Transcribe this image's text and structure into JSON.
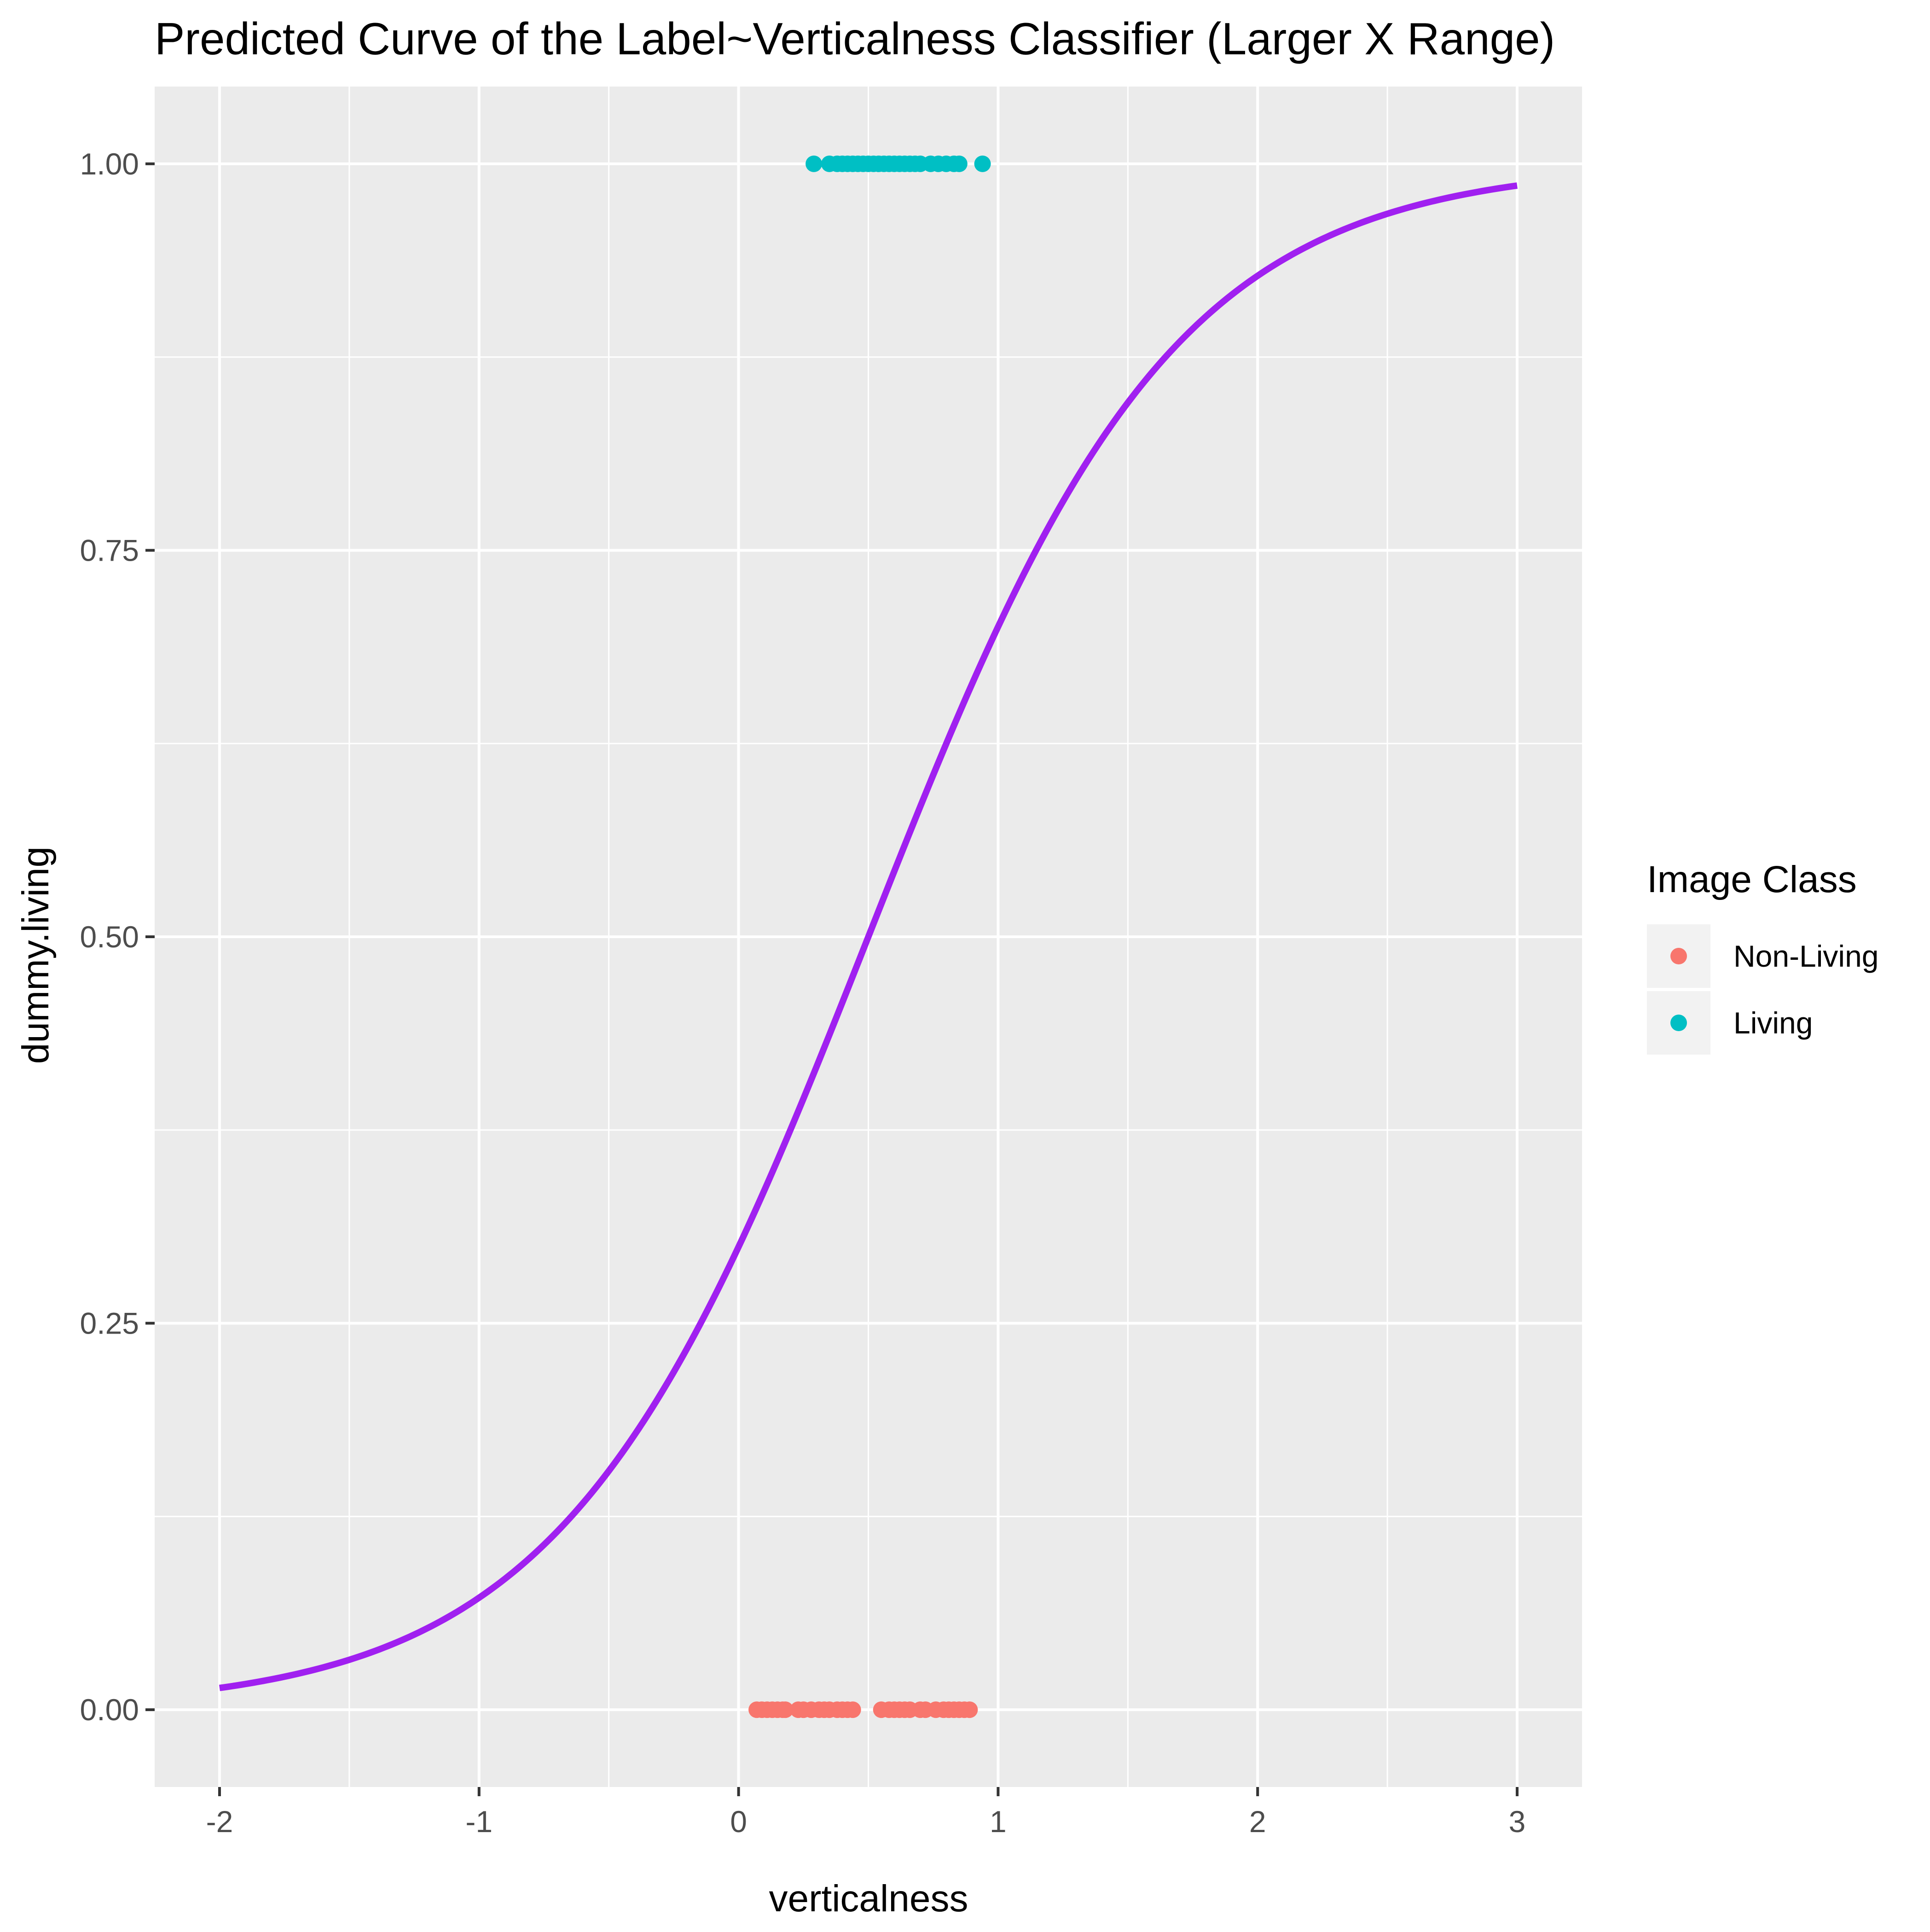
{
  "chart_data": {
    "type": "scatter",
    "title": "Predicted Curve of the Label~Verticalness Classifier (Larger X Range)",
    "xlabel": "verticalness",
    "ylabel": "dummy.living",
    "xlim": [
      -2.25,
      3.25
    ],
    "ylim": [
      -0.05,
      1.05
    ],
    "x_ticks": [
      -2,
      -1,
      0,
      1,
      2,
      3
    ],
    "x_tick_labels": [
      "-2",
      "-1",
      "0",
      "1",
      "2",
      "3"
    ],
    "y_ticks": [
      0,
      0.25,
      0.5,
      0.75,
      1
    ],
    "y_tick_labels": [
      "0.00",
      "0.25",
      "0.50",
      "0.75",
      "1.00"
    ],
    "grid": true,
    "legend": {
      "title": "Image Class",
      "position": "right",
      "entries": [
        {
          "label": "Non-Living",
          "color": "#F8766D"
        },
        {
          "label": "Living",
          "color": "#00BFC4"
        }
      ]
    },
    "series": [
      {
        "name": "Non-Living",
        "color": "#F8766D",
        "x": [
          0.07,
          0.09,
          0.11,
          0.13,
          0.15,
          0.17,
          0.18,
          0.23,
          0.25,
          0.28,
          0.31,
          0.33,
          0.35,
          0.38,
          0.4,
          0.42,
          0.44,
          0.55,
          0.58,
          0.6,
          0.62,
          0.64,
          0.66,
          0.7,
          0.72,
          0.76,
          0.79,
          0.81,
          0.83,
          0.85,
          0.87,
          0.89
        ],
        "y": [
          0,
          0,
          0,
          0,
          0,
          0,
          0,
          0,
          0,
          0,
          0,
          0,
          0,
          0,
          0,
          0,
          0,
          0,
          0,
          0,
          0,
          0,
          0,
          0,
          0,
          0,
          0,
          0,
          0,
          0,
          0,
          0
        ]
      },
      {
        "name": "Living",
        "color": "#00BFC4",
        "x": [
          0.29,
          0.35,
          0.38,
          0.4,
          0.42,
          0.44,
          0.46,
          0.48,
          0.5,
          0.52,
          0.54,
          0.56,
          0.58,
          0.6,
          0.62,
          0.64,
          0.66,
          0.68,
          0.7,
          0.74,
          0.77,
          0.8,
          0.83,
          0.85,
          0.94
        ],
        "y": [
          1,
          1,
          1,
          1,
          1,
          1,
          1,
          1,
          1,
          1,
          1,
          1,
          1,
          1,
          1,
          1,
          1,
          1,
          1,
          1,
          1,
          1,
          1,
          1,
          1
        ]
      }
    ],
    "curve": {
      "type": "logistic",
      "color": "#A020F0",
      "x_range": [
        -2,
        3
      ],
      "intercept": -0.85,
      "slope": 1.7
    }
  }
}
